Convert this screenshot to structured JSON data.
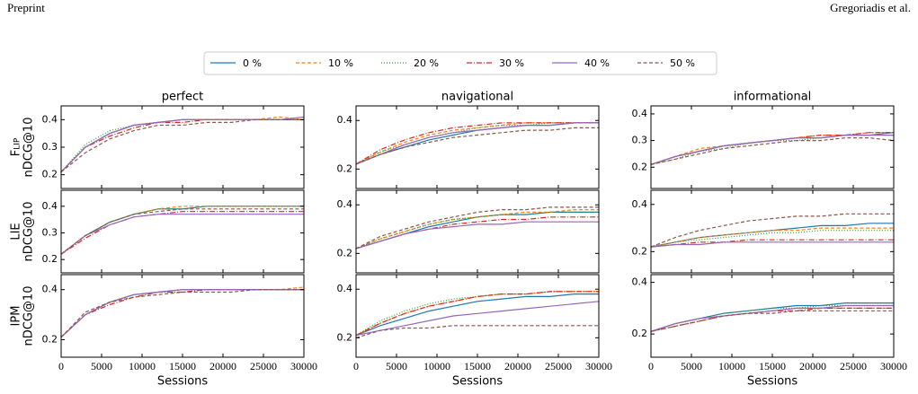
{
  "header": {
    "left": "Preprint",
    "right": "Gregoriadis et al."
  },
  "legend": {
    "entries": [
      {
        "name": "0 %",
        "color": "#1f77b4",
        "linestyle": "solid"
      },
      {
        "name": "10 %",
        "color": "#ff7f0e",
        "linestyle": "dashed"
      },
      {
        "name": "20 %",
        "color": "#2ca02c",
        "linestyle": "dotted"
      },
      {
        "name": "30 %",
        "color": "#d62728",
        "linestyle": "dashdot"
      },
      {
        "name": "40 %",
        "color": "#9467bd",
        "linestyle": "solid"
      },
      {
        "name": "50 %",
        "color": "#8c564b",
        "linestyle": "dashed"
      }
    ]
  },
  "chart_data": [
    {
      "type": "line",
      "title": "perfect",
      "ylabel": [
        "Flip",
        "nDCG@10"
      ],
      "x": [
        0,
        3000,
        6000,
        9000,
        12000,
        15000,
        18000,
        21000,
        24000,
        27000,
        30000
      ],
      "xlim": [
        0,
        30000
      ],
      "xticks": [
        0,
        5000,
        10000,
        15000,
        20000,
        25000,
        30000
      ],
      "ylim": [
        0.15,
        0.45
      ],
      "yticks": [
        0.2,
        0.3,
        0.4
      ],
      "series": [
        {
          "values": [
            0.21,
            0.3,
            0.35,
            0.38,
            0.39,
            0.4,
            0.4,
            0.4,
            0.4,
            0.4,
            0.4
          ]
        },
        {
          "values": [
            0.21,
            0.3,
            0.35,
            0.38,
            0.39,
            0.4,
            0.4,
            0.4,
            0.4,
            0.41,
            0.4
          ]
        },
        {
          "values": [
            0.21,
            0.31,
            0.36,
            0.38,
            0.39,
            0.4,
            0.4,
            0.4,
            0.4,
            0.4,
            0.4
          ]
        },
        {
          "values": [
            0.21,
            0.3,
            0.34,
            0.37,
            0.39,
            0.39,
            0.4,
            0.4,
            0.4,
            0.4,
            0.4
          ]
        },
        {
          "values": [
            0.21,
            0.3,
            0.35,
            0.38,
            0.39,
            0.4,
            0.4,
            0.4,
            0.4,
            0.4,
            0.41
          ]
        },
        {
          "values": [
            0.21,
            0.28,
            0.33,
            0.36,
            0.38,
            0.38,
            0.39,
            0.39,
            0.4,
            0.4,
            0.4
          ]
        }
      ]
    },
    {
      "type": "line",
      "title": "navigational",
      "x": [
        0,
        3000,
        6000,
        9000,
        12000,
        15000,
        18000,
        21000,
        24000,
        27000,
        30000
      ],
      "xlim": [
        0,
        30000
      ],
      "xticks": [
        0,
        5000,
        10000,
        15000,
        20000,
        25000,
        30000
      ],
      "ylim": [
        0.12,
        0.46
      ],
      "yticks": [
        0.2,
        0.4
      ],
      "series": [
        {
          "values": [
            0.22,
            0.26,
            0.29,
            0.32,
            0.34,
            0.36,
            0.37,
            0.38,
            0.38,
            0.39,
            0.39
          ]
        },
        {
          "values": [
            0.22,
            0.27,
            0.31,
            0.34,
            0.36,
            0.37,
            0.38,
            0.39,
            0.39,
            0.39,
            0.39
          ]
        },
        {
          "values": [
            0.22,
            0.27,
            0.3,
            0.33,
            0.35,
            0.37,
            0.38,
            0.38,
            0.39,
            0.39,
            0.39
          ]
        },
        {
          "values": [
            0.22,
            0.28,
            0.32,
            0.35,
            0.37,
            0.38,
            0.39,
            0.39,
            0.39,
            0.39,
            0.39
          ]
        },
        {
          "values": [
            0.22,
            0.26,
            0.3,
            0.33,
            0.35,
            0.36,
            0.37,
            0.38,
            0.38,
            0.39,
            0.39
          ]
        },
        {
          "values": [
            0.22,
            0.26,
            0.29,
            0.31,
            0.33,
            0.34,
            0.35,
            0.36,
            0.36,
            0.37,
            0.37
          ]
        }
      ]
    },
    {
      "type": "line",
      "title": "informational",
      "x": [
        0,
        3000,
        6000,
        9000,
        12000,
        15000,
        18000,
        21000,
        24000,
        27000,
        30000
      ],
      "xlim": [
        0,
        30000
      ],
      "xticks": [
        0,
        5000,
        10000,
        15000,
        20000,
        25000,
        30000
      ],
      "ylim": [
        0.12,
        0.43
      ],
      "yticks": [
        0.2,
        0.3,
        0.4
      ],
      "series": [
        {
          "values": [
            0.21,
            0.24,
            0.26,
            0.28,
            0.29,
            0.3,
            0.31,
            0.31,
            0.32,
            0.32,
            0.33
          ]
        },
        {
          "values": [
            0.21,
            0.24,
            0.27,
            0.28,
            0.29,
            0.3,
            0.31,
            0.32,
            0.32,
            0.33,
            0.33
          ]
        },
        {
          "values": [
            0.21,
            0.23,
            0.26,
            0.27,
            0.29,
            0.3,
            0.3,
            0.31,
            0.32,
            0.32,
            0.32
          ]
        },
        {
          "values": [
            0.21,
            0.24,
            0.26,
            0.28,
            0.29,
            0.3,
            0.31,
            0.32,
            0.32,
            0.33,
            0.33
          ]
        },
        {
          "values": [
            0.21,
            0.24,
            0.26,
            0.28,
            0.29,
            0.3,
            0.31,
            0.31,
            0.32,
            0.32,
            0.32
          ]
        },
        {
          "values": [
            0.21,
            0.23,
            0.25,
            0.27,
            0.28,
            0.29,
            0.3,
            0.3,
            0.31,
            0.31,
            0.3
          ]
        }
      ]
    },
    {
      "type": "line",
      "ylabel": [
        "LIE",
        "nDCG@10"
      ],
      "x": [
        0,
        3000,
        6000,
        9000,
        12000,
        15000,
        18000,
        21000,
        24000,
        27000,
        30000
      ],
      "xlim": [
        0,
        30000
      ],
      "xticks": [
        0,
        5000,
        10000,
        15000,
        20000,
        25000,
        30000
      ],
      "ylim": [
        0.15,
        0.46
      ],
      "yticks": [
        0.2,
        0.3,
        0.4
      ],
      "series": [
        {
          "values": [
            0.22,
            0.29,
            0.34,
            0.37,
            0.39,
            0.39,
            0.4,
            0.4,
            0.4,
            0.4,
            0.4
          ]
        },
        {
          "values": [
            0.22,
            0.29,
            0.34,
            0.37,
            0.39,
            0.4,
            0.4,
            0.4,
            0.4,
            0.4,
            0.4
          ]
        },
        {
          "values": [
            0.22,
            0.29,
            0.34,
            0.37,
            0.39,
            0.39,
            0.4,
            0.4,
            0.4,
            0.4,
            0.4
          ]
        },
        {
          "values": [
            0.22,
            0.28,
            0.33,
            0.36,
            0.37,
            0.38,
            0.38,
            0.38,
            0.38,
            0.38,
            0.38
          ]
        },
        {
          "values": [
            0.22,
            0.29,
            0.33,
            0.36,
            0.37,
            0.37,
            0.37,
            0.37,
            0.37,
            0.37,
            0.37
          ]
        },
        {
          "values": [
            0.22,
            0.29,
            0.34,
            0.37,
            0.38,
            0.39,
            0.39,
            0.39,
            0.39,
            0.39,
            0.39
          ]
        }
      ]
    },
    {
      "type": "line",
      "x": [
        0,
        3000,
        6000,
        9000,
        12000,
        15000,
        18000,
        21000,
        24000,
        27000,
        30000
      ],
      "xlim": [
        0,
        30000
      ],
      "xticks": [
        0,
        5000,
        10000,
        15000,
        20000,
        25000,
        30000
      ],
      "ylim": [
        0.12,
        0.46
      ],
      "yticks": [
        0.2,
        0.4
      ],
      "series": [
        {
          "values": [
            0.22,
            0.25,
            0.28,
            0.31,
            0.33,
            0.35,
            0.36,
            0.36,
            0.37,
            0.37,
            0.37
          ]
        },
        {
          "values": [
            0.22,
            0.26,
            0.29,
            0.32,
            0.34,
            0.35,
            0.36,
            0.37,
            0.37,
            0.38,
            0.38
          ]
        },
        {
          "values": [
            0.22,
            0.26,
            0.29,
            0.32,
            0.34,
            0.35,
            0.36,
            0.36,
            0.37,
            0.37,
            0.37
          ]
        },
        {
          "values": [
            0.22,
            0.25,
            0.28,
            0.3,
            0.32,
            0.33,
            0.34,
            0.34,
            0.35,
            0.35,
            0.35
          ]
        },
        {
          "values": [
            0.22,
            0.25,
            0.28,
            0.3,
            0.31,
            0.32,
            0.32,
            0.33,
            0.33,
            0.33,
            0.33
          ]
        },
        {
          "values": [
            0.22,
            0.27,
            0.3,
            0.33,
            0.35,
            0.37,
            0.38,
            0.38,
            0.39,
            0.39,
            0.39
          ]
        }
      ]
    },
    {
      "type": "line",
      "x": [
        0,
        3000,
        6000,
        9000,
        12000,
        15000,
        18000,
        21000,
        24000,
        27000,
        30000
      ],
      "xlim": [
        0,
        30000
      ],
      "xticks": [
        0,
        5000,
        10000,
        15000,
        20000,
        25000,
        30000
      ],
      "ylim": [
        0.11,
        0.46
      ],
      "yticks": [
        0.2,
        0.4
      ],
      "series": [
        {
          "values": [
            0.22,
            0.24,
            0.26,
            0.27,
            0.28,
            0.29,
            0.3,
            0.31,
            0.31,
            0.32,
            0.32
          ]
        },
        {
          "values": [
            0.22,
            0.24,
            0.26,
            0.27,
            0.28,
            0.29,
            0.29,
            0.3,
            0.3,
            0.3,
            0.3
          ]
        },
        {
          "values": [
            0.22,
            0.24,
            0.25,
            0.26,
            0.27,
            0.28,
            0.28,
            0.29,
            0.29,
            0.29,
            0.29
          ]
        },
        {
          "values": [
            0.22,
            0.23,
            0.24,
            0.24,
            0.25,
            0.25,
            0.25,
            0.25,
            0.25,
            0.25,
            0.25
          ]
        },
        {
          "values": [
            0.22,
            0.23,
            0.23,
            0.24,
            0.24,
            0.24,
            0.24,
            0.24,
            0.24,
            0.24,
            0.24
          ]
        },
        {
          "values": [
            0.22,
            0.26,
            0.29,
            0.31,
            0.33,
            0.34,
            0.35,
            0.35,
            0.36,
            0.36,
            0.36
          ]
        }
      ]
    },
    {
      "type": "line",
      "ylabel": [
        "IPM",
        "nDCG@10"
      ],
      "xlabel": "Sessions",
      "x": [
        0,
        3000,
        6000,
        9000,
        12000,
        15000,
        18000,
        21000,
        24000,
        27000,
        30000
      ],
      "xlim": [
        0,
        30000
      ],
      "xticks": [
        0,
        5000,
        10000,
        15000,
        20000,
        25000,
        30000
      ],
      "ylim": [
        0.13,
        0.46
      ],
      "yticks": [
        0.2,
        0.4
      ],
      "series": [
        {
          "values": [
            0.21,
            0.3,
            0.35,
            0.38,
            0.39,
            0.4,
            0.4,
            0.4,
            0.4,
            0.4,
            0.4
          ]
        },
        {
          "values": [
            0.21,
            0.3,
            0.35,
            0.38,
            0.39,
            0.4,
            0.4,
            0.4,
            0.4,
            0.4,
            0.41
          ]
        },
        {
          "values": [
            0.21,
            0.3,
            0.35,
            0.38,
            0.39,
            0.4,
            0.4,
            0.4,
            0.4,
            0.4,
            0.4
          ]
        },
        {
          "values": [
            0.21,
            0.3,
            0.34,
            0.37,
            0.39,
            0.39,
            0.4,
            0.4,
            0.4,
            0.4,
            0.4
          ]
        },
        {
          "values": [
            0.21,
            0.3,
            0.35,
            0.38,
            0.39,
            0.4,
            0.4,
            0.4,
            0.4,
            0.4,
            0.4
          ]
        },
        {
          "values": [
            0.21,
            0.31,
            0.35,
            0.37,
            0.38,
            0.39,
            0.39,
            0.39,
            0.4,
            0.4,
            0.4
          ]
        }
      ]
    },
    {
      "type": "line",
      "xlabel": "Sessions",
      "x": [
        0,
        3000,
        6000,
        9000,
        12000,
        15000,
        18000,
        21000,
        24000,
        27000,
        30000
      ],
      "xlim": [
        0,
        30000
      ],
      "xticks": [
        0,
        5000,
        10000,
        15000,
        20000,
        25000,
        30000
      ],
      "ylim": [
        0.12,
        0.46
      ],
      "yticks": [
        0.2,
        0.4
      ],
      "series": [
        {
          "values": [
            0.21,
            0.25,
            0.28,
            0.31,
            0.33,
            0.35,
            0.36,
            0.37,
            0.37,
            0.38,
            0.38
          ]
        },
        {
          "values": [
            0.21,
            0.26,
            0.3,
            0.33,
            0.35,
            0.37,
            0.38,
            0.38,
            0.39,
            0.39,
            0.39
          ]
        },
        {
          "values": [
            0.21,
            0.27,
            0.31,
            0.34,
            0.36,
            0.37,
            0.38,
            0.38,
            0.39,
            0.39,
            0.39
          ]
        },
        {
          "values": [
            0.21,
            0.26,
            0.3,
            0.33,
            0.35,
            0.37,
            0.38,
            0.38,
            0.39,
            0.39,
            0.39
          ]
        },
        {
          "values": [
            0.21,
            0.23,
            0.25,
            0.27,
            0.29,
            0.3,
            0.31,
            0.32,
            0.33,
            0.34,
            0.35
          ]
        },
        {
          "values": [
            0.2,
            0.23,
            0.24,
            0.24,
            0.25,
            0.25,
            0.25,
            0.25,
            0.25,
            0.25,
            0.25
          ]
        }
      ]
    },
    {
      "type": "line",
      "xlabel": "Sessions",
      "x": [
        0,
        3000,
        6000,
        9000,
        12000,
        15000,
        18000,
        21000,
        24000,
        27000,
        30000
      ],
      "xlim": [
        0,
        30000
      ],
      "xticks": [
        0,
        5000,
        10000,
        15000,
        20000,
        25000,
        30000
      ],
      "ylim": [
        0.11,
        0.43
      ],
      "yticks": [
        0.2,
        0.4
      ],
      "series": [
        {
          "values": [
            0.21,
            0.24,
            0.26,
            0.28,
            0.29,
            0.3,
            0.31,
            0.31,
            0.32,
            0.32,
            0.32
          ]
        },
        {
          "values": [
            0.21,
            0.24,
            0.26,
            0.27,
            0.28,
            0.29,
            0.3,
            0.3,
            0.3,
            0.3,
            0.3
          ]
        },
        {
          "values": [
            0.21,
            0.24,
            0.26,
            0.28,
            0.29,
            0.3,
            0.3,
            0.31,
            0.31,
            0.31,
            0.31
          ]
        },
        {
          "values": [
            0.21,
            0.23,
            0.25,
            0.27,
            0.28,
            0.29,
            0.29,
            0.3,
            0.3,
            0.3,
            0.3
          ]
        },
        {
          "values": [
            0.21,
            0.24,
            0.26,
            0.27,
            0.28,
            0.29,
            0.3,
            0.3,
            0.31,
            0.31,
            0.31
          ]
        },
        {
          "values": [
            0.21,
            0.23,
            0.25,
            0.27,
            0.28,
            0.28,
            0.29,
            0.29,
            0.29,
            0.29,
            0.29
          ]
        }
      ]
    }
  ]
}
